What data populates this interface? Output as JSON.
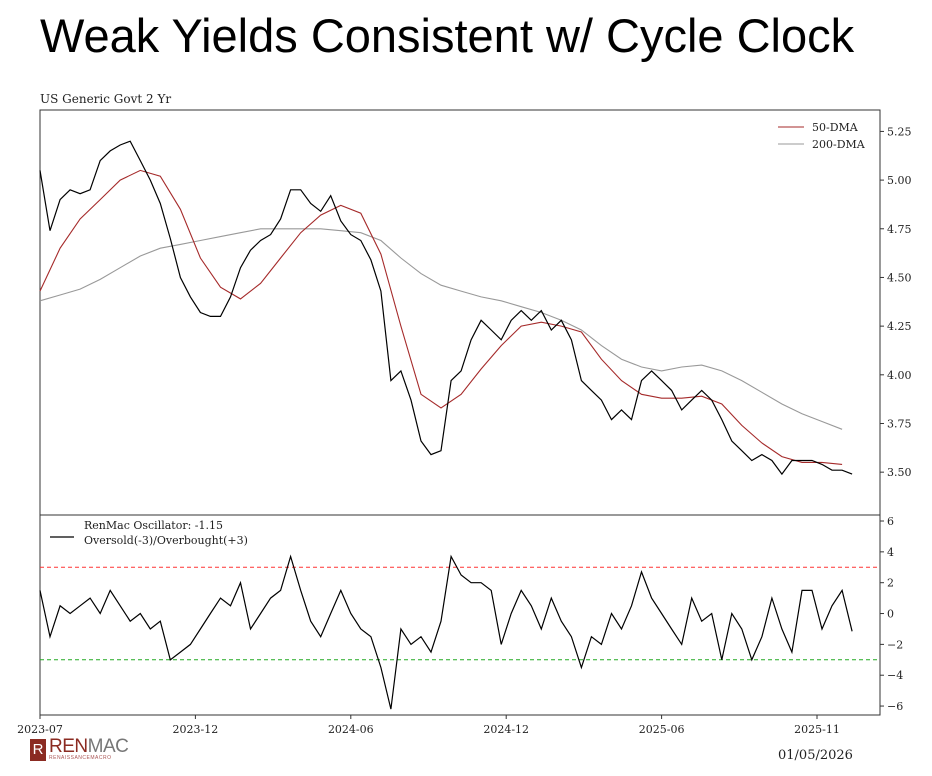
{
  "title": "Weak Yields Consistent w/ Cycle Clock",
  "date_label": "01/05/2026",
  "logo": {
    "main_a": "REN",
    "main_b": "MAC",
    "sub": "RENAISSANCEMACRO"
  },
  "colors": {
    "price": "#000000",
    "dma50": "#a52a2a",
    "dma200": "#999999",
    "osc": "#000000",
    "overbought": "#ff3333",
    "oversold": "#22aa22",
    "logo": "#8b2b22"
  },
  "chart_data": [
    {
      "type": "line",
      "title": "US Generic Govt 2 Yr",
      "x_start": "2023-07-01",
      "xlim_days": [
        0,
        930
      ],
      "x_tick_labels": [
        "2023-07",
        "2023-12",
        "2024-06",
        "2024-12",
        "2025-06",
        "2025-11"
      ],
      "ylim": [
        3.28,
        5.36
      ],
      "y_ticks": [
        3.5,
        3.75,
        4.0,
        4.25,
        4.5,
        4.75,
        5.0,
        5.25
      ],
      "y_tick_labels": [
        "3.50",
        "3.75",
        "4.00",
        "4.25",
        "4.50",
        "4.75",
        "5.00",
        "5.25"
      ],
      "legend": "top-right",
      "series": [
        {
          "name": "US Generic Govt 2 Yr",
          "interval_days": 11.1,
          "values": [
            5.05,
            4.74,
            4.9,
            4.95,
            4.93,
            4.95,
            5.1,
            5.15,
            5.18,
            5.2,
            5.1,
            5.0,
            4.88,
            4.7,
            4.5,
            4.4,
            4.32,
            4.3,
            4.3,
            4.4,
            4.55,
            4.64,
            4.69,
            4.72,
            4.8,
            4.95,
            4.95,
            4.88,
            4.84,
            4.92,
            4.79,
            4.72,
            4.69,
            4.59,
            4.43,
            3.97,
            4.02,
            3.87,
            3.66,
            3.59,
            3.61,
            3.97,
            4.02,
            4.18,
            4.28,
            4.23,
            4.18,
            4.28,
            4.33,
            4.28,
            4.33,
            4.23,
            4.28,
            4.18,
            3.97,
            3.92,
            3.87,
            3.77,
            3.82,
            3.77,
            3.97,
            4.02,
            3.97,
            3.92,
            3.82,
            3.87,
            3.92,
            3.87,
            3.77,
            3.66,
            3.61,
            3.56,
            3.59,
            3.56,
            3.49,
            3.56,
            3.56,
            3.56,
            3.54,
            3.51,
            3.51,
            3.49
          ]
        },
        {
          "name": "50-DMA",
          "interval_days": 22.2,
          "values": [
            4.43,
            4.65,
            4.8,
            4.9,
            5.0,
            5.05,
            5.02,
            4.85,
            4.6,
            4.45,
            4.39,
            4.47,
            4.6,
            4.73,
            4.82,
            4.87,
            4.83,
            4.62,
            4.25,
            3.9,
            3.83,
            3.9,
            4.03,
            4.15,
            4.25,
            4.27,
            4.25,
            4.22,
            4.08,
            3.97,
            3.9,
            3.88,
            3.88,
            3.89,
            3.85,
            3.74,
            3.65,
            3.58,
            3.55,
            3.55,
            3.54
          ]
        },
        {
          "name": "200-DMA",
          "interval_days": 22.2,
          "values": [
            4.38,
            4.41,
            4.44,
            4.49,
            4.55,
            4.61,
            4.65,
            4.67,
            4.69,
            4.71,
            4.73,
            4.75,
            4.75,
            4.75,
            4.75,
            4.74,
            4.73,
            4.69,
            4.6,
            4.52,
            4.46,
            4.43,
            4.4,
            4.38,
            4.35,
            4.32,
            4.28,
            4.23,
            4.15,
            4.08,
            4.04,
            4.02,
            4.04,
            4.05,
            4.02,
            3.97,
            3.91,
            3.85,
            3.8,
            3.76,
            3.72
          ]
        }
      ]
    },
    {
      "type": "line",
      "xlim_days": [
        0,
        930
      ],
      "ylim": [
        -6.58,
        6.39
      ],
      "y_ticks": [
        -6,
        -4,
        -2,
        0,
        2,
        4,
        6
      ],
      "y_tick_labels": [
        "−6",
        "−4",
        "−2",
        "0",
        "2",
        "4",
        "6"
      ],
      "legend": "top-left",
      "legend_lines": [
        "RenMac Oscillator: -1.15",
        "Oversold(-3)/Overbought(+3)"
      ],
      "thresholds": {
        "overbought": 3,
        "oversold": -3
      },
      "series": [
        {
          "name": "RenMac Oscillator",
          "interval_days": 11.1,
          "values": [
            1.5,
            -1.5,
            0.5,
            0,
            0.5,
            1,
            0,
            1.5,
            0.5,
            -0.5,
            0,
            -1,
            -0.5,
            -3,
            -2.5,
            -2,
            -1,
            0,
            1,
            0.5,
            2,
            -1,
            0,
            1,
            1.5,
            3.7,
            1.5,
            -0.5,
            -1.5,
            0,
            1.5,
            0,
            -1,
            -1.5,
            -3.5,
            -6.2,
            -1,
            -2,
            -1.5,
            -2.5,
            -0.5,
            3.7,
            2.5,
            2,
            2,
            1.5,
            -2,
            0,
            1.5,
            0.5,
            -1,
            1,
            -0.5,
            -1.5,
            -3.5,
            -1.5,
            -2,
            0,
            -1,
            0.5,
            2.7,
            1,
            0,
            -1,
            -2,
            1,
            -0.5,
            0,
            -3,
            0,
            -1,
            -3,
            -1.5,
            1,
            -1,
            -2.5,
            1.5,
            1.5,
            -1,
            0.5,
            1.5,
            -1.15
          ]
        }
      ]
    }
  ]
}
